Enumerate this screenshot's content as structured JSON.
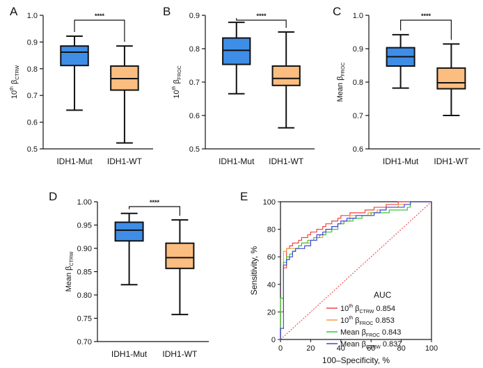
{
  "colors": {
    "mut_fill": "#3e8ee8",
    "wt_fill": "#fbbd80",
    "axis": "#111111",
    "roc_series": [
      "#ee4444",
      "#f0a040",
      "#33cc33",
      "#4444dd"
    ],
    "diagonal": "#ee3333"
  },
  "chart_data": [
    {
      "panel": "A",
      "type": "box",
      "categories": [
        "IDH1-Mut",
        "IDH1-WT"
      ],
      "ylabel": {
        "prefix": "10",
        "sup": "th",
        "greek": " β",
        "sub": "CTRW"
      },
      "ylim": [
        0.5,
        1.0
      ],
      "yticks": [
        "0.5",
        "0.6",
        "0.7",
        "0.8",
        "0.9",
        "1.0"
      ],
      "boxes": [
        {
          "min": 0.645,
          "q1": 0.812,
          "median": 0.862,
          "q3": 0.885,
          "max": 0.922
        },
        {
          "min": 0.522,
          "q1": 0.72,
          "median": 0.763,
          "q3": 0.81,
          "max": 0.885
        }
      ],
      "significance": "****"
    },
    {
      "panel": "B",
      "type": "box",
      "categories": [
        "IDH1-Mut",
        "IDH1-WT"
      ],
      "ylabel": {
        "prefix": "10",
        "sup": "th",
        "greek": " β",
        "sub": "FROC"
      },
      "ylim": [
        0.5,
        0.9
      ],
      "yticks": [
        "0.5",
        "0.6",
        "0.7",
        "0.8",
        "0.9"
      ],
      "boxes": [
        {
          "min": 0.665,
          "q1": 0.753,
          "median": 0.795,
          "q3": 0.832,
          "max": 0.879
        },
        {
          "min": 0.563,
          "q1": 0.69,
          "median": 0.711,
          "q3": 0.748,
          "max": 0.85
        }
      ],
      "significance": "****"
    },
    {
      "panel": "C",
      "type": "box",
      "categories": [
        "IDH1-Mut",
        "IDH1-WT"
      ],
      "ylabel": {
        "prefix": "Mean",
        "sup": "",
        "greek": " β",
        "sub": "FROC"
      },
      "ylim": [
        0.6,
        1.0
      ],
      "yticks": [
        "0.6",
        "0.7",
        "0.8",
        "0.9",
        "1.0"
      ],
      "boxes": [
        {
          "min": 0.782,
          "q1": 0.848,
          "median": 0.876,
          "q3": 0.903,
          "max": 0.942
        },
        {
          "min": 0.7,
          "q1": 0.78,
          "median": 0.798,
          "q3": 0.842,
          "max": 0.914
        }
      ],
      "significance": "****"
    },
    {
      "panel": "D",
      "type": "box",
      "categories": [
        "IDH1-Mut",
        "IDH1-WT"
      ],
      "ylabel": {
        "prefix": "Mean",
        "sup": "",
        "greek": " β",
        "sub": "CTRW"
      },
      "ylim": [
        0.7,
        1.0
      ],
      "yticks": [
        "0.70",
        "0.75",
        "0.80",
        "0.85",
        "0.90",
        "0.95",
        "1.00"
      ],
      "boxes": [
        {
          "min": 0.822,
          "q1": 0.916,
          "median": 0.939,
          "q3": 0.956,
          "max": 0.975
        },
        {
          "min": 0.758,
          "q1": 0.857,
          "median": 0.88,
          "q3": 0.911,
          "max": 0.961
        }
      ],
      "significance": "****"
    },
    {
      "panel": "E",
      "type": "line",
      "xlabel": "100–Specificity, %",
      "ylabel": "Sensitivity, %",
      "xlim": [
        0,
        100
      ],
      "ylim": [
        0,
        100
      ],
      "xticks": [
        "0",
        "20",
        "40",
        "60",
        "80",
        "100"
      ],
      "yticks": [
        "0",
        "20",
        "40",
        "60",
        "80",
        "100"
      ],
      "legend_title": "AUC",
      "legend_position": "bottom-right",
      "series": [
        {
          "name": {
            "prefix": "10",
            "sup": "th",
            "greek": " β",
            "sub": "CTRW",
            "auc": " 0.854"
          },
          "x": [
            0,
            0,
            2,
            2,
            4,
            4,
            6,
            8,
            10,
            12,
            14,
            16,
            18,
            20,
            24,
            28,
            30,
            34,
            38,
            40,
            46,
            50,
            56,
            62,
            70,
            78,
            84,
            100
          ],
          "y": [
            0,
            20,
            40,
            52,
            62,
            66,
            68,
            70,
            70,
            72,
            74,
            74,
            76,
            78,
            80,
            82,
            84,
            86,
            88,
            90,
            92,
            92,
            94,
            96,
            98,
            100,
            100,
            100
          ]
        },
        {
          "name": {
            "prefix": "10",
            "sup": "th",
            "greek": " β",
            "sub": "FROC",
            "auc": " 0.853"
          },
          "x": [
            0,
            0,
            2,
            2,
            4,
            4,
            6,
            8,
            10,
            12,
            14,
            18,
            20,
            24,
            28,
            30,
            34,
            38,
            42,
            46,
            52,
            58,
            64,
            70,
            78,
            84,
            86,
            100
          ],
          "y": [
            0,
            30,
            40,
            64,
            64,
            66,
            66,
            66,
            66,
            68,
            70,
            70,
            72,
            74,
            76,
            80,
            82,
            84,
            86,
            90,
            90,
            92,
            94,
            96,
            98,
            98,
            100,
            100
          ]
        },
        {
          "name": {
            "prefix": "Mean",
            "sup": "",
            "greek": " β",
            "sub": "FROC",
            "auc": " 0.843"
          },
          "x": [
            0,
            0,
            2,
            2,
            4,
            6,
            8,
            10,
            12,
            14,
            16,
            18,
            22,
            26,
            30,
            34,
            38,
            42,
            48,
            54,
            60,
            66,
            72,
            78,
            84,
            86,
            100
          ],
          "y": [
            0,
            30,
            40,
            56,
            60,
            62,
            64,
            66,
            68,
            70,
            70,
            72,
            74,
            76,
            78,
            80,
            84,
            86,
            88,
            90,
            92,
            92,
            94,
            94,
            96,
            100,
            100
          ]
        },
        {
          "name": {
            "prefix": "Mean",
            "sup": "",
            "greek": " β",
            "sub": "CTRW",
            "auc": " 0.837"
          },
          "x": [
            0,
            0,
            2,
            2,
            4,
            6,
            8,
            10,
            12,
            16,
            20,
            24,
            28,
            30,
            34,
            38,
            40,
            44,
            50,
            56,
            62,
            66,
            70,
            76,
            82,
            86,
            100
          ],
          "y": [
            0,
            8,
            40,
            54,
            58,
            60,
            64,
            66,
            66,
            68,
            72,
            76,
            78,
            80,
            82,
            84,
            86,
            88,
            90,
            90,
            92,
            94,
            96,
            96,
            98,
            100,
            100
          ]
        }
      ]
    }
  ]
}
